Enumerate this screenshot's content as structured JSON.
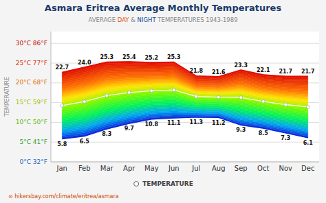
{
  "chart_data": {
    "type": "range_area",
    "title": "Asmara Eritrea Average Monthly Temperatures",
    "subtitle": [
      {
        "text": "AVERAGE ",
        "color": "#888888"
      },
      {
        "text": "DAY",
        "color": "#e05520"
      },
      {
        "text": " & ",
        "color": "#888888"
      },
      {
        "text": "NIGHT",
        "color": "#1a4fa0"
      },
      {
        "text": " TEMPERATURES 1943-1989",
        "color": "#888888"
      }
    ],
    "footer": "⊙ hikersbay.com/climate/eritrea/asmara",
    "y_label": "TEMPERATURE",
    "categories": [
      "Jan",
      "Feb",
      "Mar",
      "Apr",
      "May",
      "Jun",
      "Jul",
      "Aug",
      "Sep",
      "Oct",
      "Nov",
      "Dec"
    ],
    "series": [
      {
        "values": [
          22.7,
          24.0,
          25.3,
          25.4,
          25.2,
          25.3,
          21.8,
          21.6,
          23.3,
          22.1,
          21.7,
          21.7
        ],
        "value_labels": [
          "22.7",
          "24.0",
          "25.3",
          "25.4",
          "25.2",
          "25.3",
          "21.8",
          "21.6",
          "23.3",
          "22.1",
          "21.7",
          "21.7"
        ],
        "data_labels": true
      },
      {
        "values": [
          5.8,
          6.5,
          8.3,
          9.7,
          10.8,
          11.1,
          11.3,
          11.2,
          9.3,
          8.5,
          7.3,
          6.1
        ],
        "data_labels": true
      },
      {
        "name": "TEMPERATURE",
        "type": "line",
        "marker": "circle",
        "color": "#ffffff",
        "values": [
          14.25,
          15.25,
          16.8,
          17.55,
          18.0,
          18.2,
          16.55,
          16.4,
          16.3,
          15.3,
          14.5,
          13.9
        ]
      }
    ],
    "ylim": [
      0,
      33
    ],
    "yticks": [
      {
        "value": 0,
        "label": "0°C 32°F",
        "color": "#1a6bc0"
      },
      {
        "value": 5,
        "label": "5°C 41°F",
        "color": "#30a030"
      },
      {
        "value": 10,
        "label": "10°C 50°F",
        "color": "#60b820"
      },
      {
        "value": 15,
        "label": "15°C 59°F",
        "color": "#a0c010"
      },
      {
        "value": 20,
        "label": "20°C 68°F",
        "color": "#e07010"
      },
      {
        "value": 25,
        "label": "25°C 77°F",
        "color": "#d83010"
      },
      {
        "value": 30,
        "label": "30°C 86°F",
        "color": "#c01010"
      }
    ],
    "grid": true,
    "legend": "bottom"
  }
}
